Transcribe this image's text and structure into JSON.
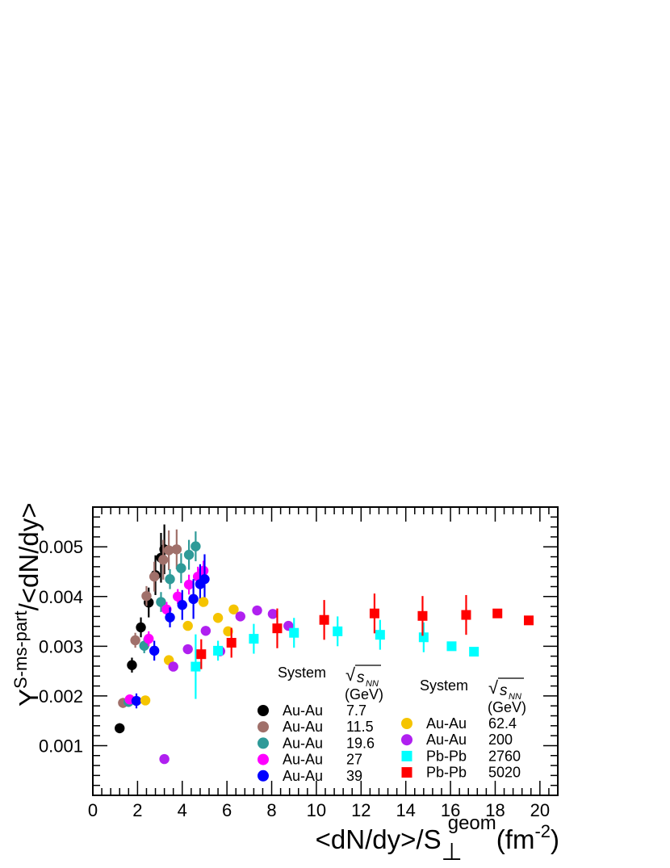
{
  "chart_data": {
    "type": "scatter",
    "title": "",
    "xlabel": {
      "main": "<dN/dy>/S",
      "subscript": "⊥",
      "superscript": "geom",
      "unit": "(fm",
      "unit_exp": "-2",
      "unit_close": ")"
    },
    "ylabel": {
      "main": "Y",
      "superscript": "S-ms-part",
      "suffix": "/<dN/dy>"
    },
    "xlim": [
      0,
      20.8
    ],
    "ylim": [
      0.0,
      0.0058
    ],
    "x_ticks": [
      "0",
      "2",
      "4",
      "6",
      "8",
      "10",
      "12",
      "14",
      "16",
      "18",
      "20"
    ],
    "y_ticks": [
      "0.001",
      "0.002",
      "0.003",
      "0.004",
      "0.005"
    ],
    "grid": false,
    "legend": {
      "placement": "bottom-right",
      "col1_header": "System",
      "col1_energy_header": "√s_NN",
      "col1_unit": "(GeV)",
      "col2_header": "System",
      "col2_energy_header": "√s_NN",
      "col2_unit": "(GeV)",
      "sqrt_symbol": "√",
      "s_label": "s",
      "nn_label": "NN"
    },
    "series": [
      {
        "name": "Au-Au",
        "energy": "7.7",
        "color": "#000000",
        "marker": "circle",
        "column": 1,
        "points": [
          [
            1.2,
            0.00135,
            0.0001
          ],
          [
            1.75,
            0.00262,
            0.00015
          ],
          [
            2.15,
            0.00338,
            0.0002
          ],
          [
            2.5,
            0.00388,
            0.0003
          ],
          [
            2.8,
            0.00443,
            0.0004
          ],
          [
            3.05,
            0.00478,
            0.0005
          ],
          [
            3.2,
            0.00495,
            0.0005
          ]
        ]
      },
      {
        "name": "Au-Au",
        "energy": "11.5",
        "color": "#a0706a",
        "marker": "circle",
        "column": 1,
        "points": [
          [
            1.35,
            0.00186,
            0.0001
          ],
          [
            1.9,
            0.00312,
            0.00015
          ],
          [
            2.4,
            0.00401,
            0.0002
          ],
          [
            2.75,
            0.0044,
            0.0003
          ],
          [
            3.15,
            0.00474,
            0.0004
          ],
          [
            3.4,
            0.00493,
            0.0004
          ],
          [
            3.75,
            0.00495,
            0.0004
          ]
        ]
      },
      {
        "name": "Au-Au",
        "energy": "19.6",
        "color": "#2e9a98",
        "marker": "circle",
        "column": 1,
        "points": [
          [
            1.6,
            0.00188,
            0.0001
          ],
          [
            2.3,
            0.00301,
            0.00015
          ],
          [
            3.05,
            0.00389,
            0.0002
          ],
          [
            3.45,
            0.00435,
            0.0002
          ],
          [
            3.95,
            0.00457,
            0.0003
          ],
          [
            4.3,
            0.00484,
            0.0003
          ],
          [
            4.6,
            0.00501,
            0.0003
          ]
        ]
      },
      {
        "name": "Au-Au",
        "energy": "27",
        "color": "#ff00ff",
        "marker": "circle",
        "column": 1,
        "points": [
          [
            1.65,
            0.00193,
            0.0001
          ],
          [
            2.5,
            0.00315,
            0.00015
          ],
          [
            3.3,
            0.00374,
            0.00015
          ],
          [
            3.8,
            0.004,
            0.00015
          ],
          [
            4.3,
            0.00424,
            0.0002
          ],
          [
            4.7,
            0.0044,
            0.0002
          ],
          [
            4.95,
            0.00452,
            0.0002
          ]
        ]
      },
      {
        "name": "Au-Au",
        "energy": "39",
        "color": "#0000ff",
        "marker": "circle",
        "column": 1,
        "points": [
          [
            1.95,
            0.0019,
            0.00015
          ],
          [
            2.75,
            0.00291,
            0.0002
          ],
          [
            3.45,
            0.00358,
            0.0002
          ],
          [
            4.0,
            0.00383,
            0.0003
          ],
          [
            4.5,
            0.00395,
            0.0004
          ],
          [
            4.8,
            0.00425,
            0.0004
          ],
          [
            5.0,
            0.00435,
            0.0005
          ]
        ]
      },
      {
        "name": "Au-Au",
        "energy": "62.4",
        "color": "#f5c400",
        "marker": "circle",
        "column": 2,
        "points": [
          [
            2.35,
            0.00191,
            5e-05
          ],
          [
            3.4,
            0.00272,
            5e-05
          ],
          [
            4.25,
            0.00341,
            5e-05
          ],
          [
            4.95,
            0.00389,
            5e-05
          ],
          [
            5.6,
            0.00357,
            5e-05
          ],
          [
            6.05,
            0.0033,
            5e-05
          ],
          [
            6.3,
            0.00374,
            5e-05
          ]
        ]
      },
      {
        "name": "Au-Au",
        "energy": "200",
        "color": "#b020f0",
        "marker": "circle",
        "column": 2,
        "points": [
          [
            3.2,
            0.00073,
            8e-05
          ],
          [
            3.6,
            0.00259,
            5e-05
          ],
          [
            4.25,
            0.00294,
            5e-05
          ],
          [
            5.05,
            0.00331,
            5e-05
          ],
          [
            5.7,
            0.0029,
            5e-05
          ],
          [
            6.6,
            0.0036,
            5e-05
          ],
          [
            7.35,
            0.00372,
            5e-05
          ],
          [
            8.05,
            0.00365,
            5e-05
          ],
          [
            8.75,
            0.00341,
            5e-05
          ]
        ]
      },
      {
        "name": "Pb-Pb",
        "energy": "2760",
        "color": "#00ffff",
        "marker": "square",
        "column": 2,
        "points": [
          [
            4.6,
            0.00259,
            0.00065
          ],
          [
            5.6,
            0.00291,
            0.0002
          ],
          [
            7.2,
            0.00315,
            0.0003
          ],
          [
            9.0,
            0.00327,
            0.0003
          ],
          [
            10.95,
            0.0033,
            0.0003
          ],
          [
            12.85,
            0.00323,
            0.0003
          ],
          [
            14.8,
            0.00318,
            0.0003
          ],
          [
            16.05,
            0.003,
            5e-05
          ],
          [
            17.05,
            0.00289,
            5e-05
          ]
        ]
      },
      {
        "name": "Pb-Pb",
        "energy": "5020",
        "color": "#ff0000",
        "marker": "square",
        "column": 2,
        "points": [
          [
            4.85,
            0.00284,
            0.0003
          ],
          [
            6.2,
            0.00307,
            0.0003
          ],
          [
            8.25,
            0.00336,
            0.0004
          ],
          [
            10.35,
            0.00353,
            0.0004
          ],
          [
            12.6,
            0.00366,
            0.0004
          ],
          [
            14.75,
            0.00361,
            0.0004
          ],
          [
            16.7,
            0.00363,
            0.0004
          ],
          [
            18.1,
            0.00366,
            5e-05
          ],
          [
            19.5,
            0.00352,
            5e-05
          ]
        ]
      }
    ]
  }
}
